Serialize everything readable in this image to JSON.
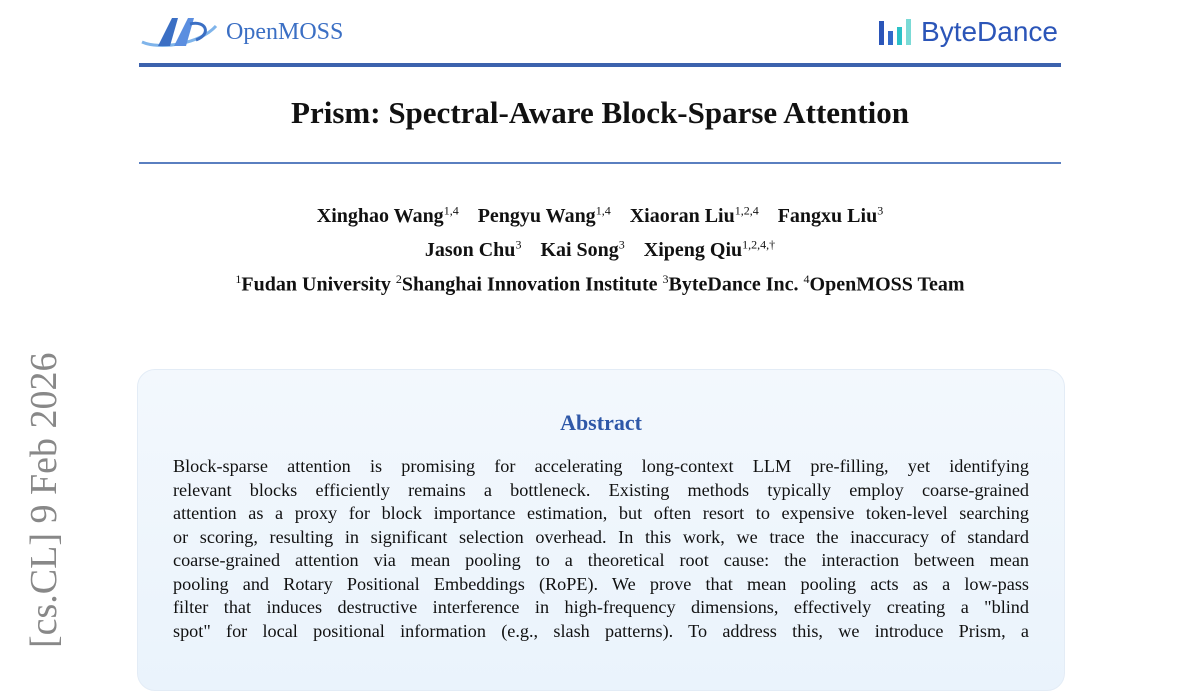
{
  "header": {
    "left_logo": "OpenMOSS",
    "right_logo": "ByteDance"
  },
  "title": "Prism: Spectral-Aware Block-Sparse Attention",
  "authors": [
    {
      "name": "Xinghao Wang",
      "aff": "1,4"
    },
    {
      "name": "Pengyu Wang",
      "aff": "1,4"
    },
    {
      "name": "Xiaoran Liu",
      "aff": "1,2,4"
    },
    {
      "name": "Fangxu Liu",
      "aff": "3"
    },
    {
      "name": "Jason Chu",
      "aff": "3"
    },
    {
      "name": "Kai Song",
      "aff": "3"
    },
    {
      "name": "Xipeng Qiu",
      "aff": "1,2,4,†"
    }
  ],
  "affiliations": [
    {
      "num": "1",
      "name": "Fudan University"
    },
    {
      "num": "2",
      "name": "Shanghai Innovation Institute"
    },
    {
      "num": "3",
      "name": "ByteDance Inc."
    },
    {
      "num": "4",
      "name": "OpenMOSS Team"
    }
  ],
  "side_stamp": "[cs.CL]  9 Feb 2026",
  "abstract": {
    "heading": "Abstract",
    "lines": [
      "Block-sparse attention is promising for accelerating long-context LLM pre-filling, yet identifying",
      "relevant blocks efficiently remains a bottleneck. Existing methods typically employ coarse-grained",
      "attention as a proxy for block importance estimation, but often resort to expensive token-level searching",
      "or scoring, resulting in significant selection overhead. In this work, we trace the inaccuracy of standard",
      "coarse-grained attention via mean pooling to a theoretical root cause: the interaction between mean",
      "pooling and Rotary Positional Embeddings (RoPE). We prove that mean pooling acts as a low-pass",
      "filter that induces destructive interference in high-frequency dimensions, effectively creating a \"blind",
      "spot\" for local positional information (e.g., slash patterns). To address this, we introduce Prism, a"
    ]
  }
}
